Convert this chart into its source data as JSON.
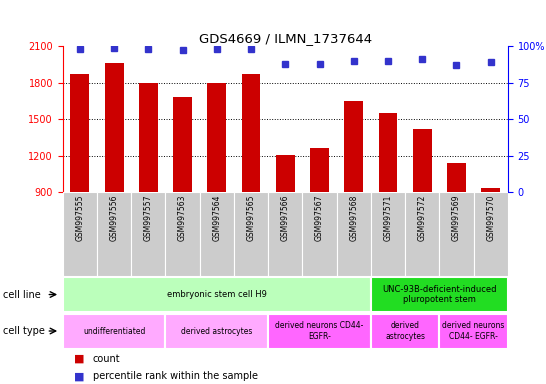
{
  "title": "GDS4669 / ILMN_1737644",
  "samples": [
    "GSM997555",
    "GSM997556",
    "GSM997557",
    "GSM997563",
    "GSM997564",
    "GSM997565",
    "GSM997566",
    "GSM997567",
    "GSM997568",
    "GSM997571",
    "GSM997572",
    "GSM997569",
    "GSM997570"
  ],
  "counts": [
    1870,
    1960,
    1800,
    1680,
    1800,
    1870,
    1205,
    1265,
    1645,
    1550,
    1415,
    1140,
    930
  ],
  "percentile_ranks": [
    98,
    99,
    98,
    97,
    98,
    98,
    88,
    88,
    90,
    90,
    91,
    87,
    89
  ],
  "ylim_left": [
    900,
    2100
  ],
  "ylim_right": [
    0,
    100
  ],
  "yticks_left": [
    900,
    1200,
    1500,
    1800,
    2100
  ],
  "yticks_right": [
    0,
    25,
    50,
    75,
    100
  ],
  "bar_color": "#cc0000",
  "dot_color": "#3333cc",
  "bar_width": 0.55,
  "cell_line_groups": [
    {
      "label": "embryonic stem cell H9",
      "start": 0,
      "end": 8,
      "color": "#bbffbb"
    },
    {
      "label": "UNC-93B-deficient-induced\npluropotent stem",
      "start": 9,
      "end": 12,
      "color": "#22dd22"
    }
  ],
  "cell_type_groups": [
    {
      "label": "undifferentiated",
      "start": 0,
      "end": 2,
      "color": "#ffaaff"
    },
    {
      "label": "derived astrocytes",
      "start": 3,
      "end": 5,
      "color": "#ffaaff"
    },
    {
      "label": "derived neurons CD44-\nEGFR-",
      "start": 6,
      "end": 8,
      "color": "#ff66ff"
    },
    {
      "label": "derived\nastrocytes",
      "start": 9,
      "end": 10,
      "color": "#ff66ff"
    },
    {
      "label": "derived neurons\nCD44- EGFR-",
      "start": 11,
      "end": 12,
      "color": "#ff66ff"
    }
  ],
  "tick_bg_color": "#cccccc",
  "legend_items": [
    {
      "color": "#cc0000",
      "label": "count"
    },
    {
      "color": "#3333cc",
      "label": "percentile rank within the sample"
    }
  ]
}
